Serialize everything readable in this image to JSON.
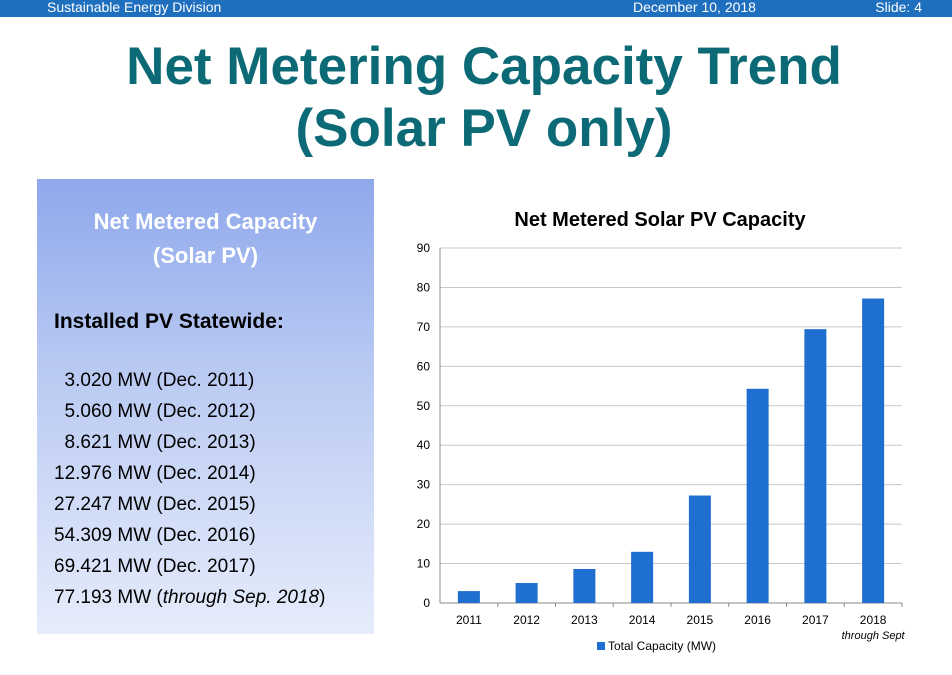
{
  "header": {
    "division": "Sustainable Energy Division",
    "date": "December 10, 2018",
    "slide": "Slide: 4"
  },
  "title": {
    "line1": "Net Metering Capacity Trend",
    "line2": "(Solar PV only)"
  },
  "panel": {
    "title_line1": "Net Metered Capacity",
    "title_line2": "(Solar PV)",
    "heading": "Installed PV Statewide:",
    "items": [
      {
        "value": "  3.020 MW (Dec. 2011)",
        "note": ""
      },
      {
        "value": "  5.060 MW (Dec. 2012)",
        "note": ""
      },
      {
        "value": "  8.621 MW (Dec. 2013)",
        "note": ""
      },
      {
        "value": "12.976 MW (Dec. 2014)",
        "note": ""
      },
      {
        "value": "27.247 MW (Dec. 2015)",
        "note": ""
      },
      {
        "value": "54.309 MW (Dec. 2016)",
        "note": ""
      },
      {
        "value": "69.421 MW (Dec. 2017)",
        "note": ""
      },
      {
        "value": "77.193 MW (",
        "note": "through Sep. 2018",
        "suffix": ")"
      }
    ]
  },
  "chart_data": {
    "type": "bar",
    "title": "Net Metered Solar PV Capacity",
    "categories": [
      "2011",
      "2012",
      "2013",
      "2014",
      "2015",
      "2016",
      "2017",
      "2018"
    ],
    "category_note": {
      "index": 7,
      "text": "through Sept"
    },
    "series": [
      {
        "name": "Total Capacity (MW)",
        "values": [
          3.02,
          5.06,
          8.621,
          12.976,
          27.247,
          54.309,
          69.421,
          77.193
        ]
      }
    ],
    "xlabel": "",
    "ylabel": "",
    "ylim": [
      0,
      90
    ],
    "yticks": [
      0,
      10,
      20,
      30,
      40,
      50,
      60,
      70,
      80,
      90
    ],
    "grid": true,
    "legend": "bottom",
    "bar_color": "#1f6fd0"
  }
}
